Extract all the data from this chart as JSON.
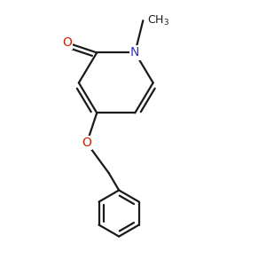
{
  "background_color": "#ffffff",
  "bond_color": "#1a1a1a",
  "N_color": "#3333cc",
  "O_color": "#cc2200",
  "font_size": 10,
  "methyl_font_size": 9,
  "line_width": 1.6,
  "dbo": 0.018,
  "figsize": [
    3.0,
    3.0
  ],
  "dpi": 100,
  "xlim": [
    -0.05,
    0.95
  ],
  "ylim": [
    -0.55,
    0.75
  ]
}
